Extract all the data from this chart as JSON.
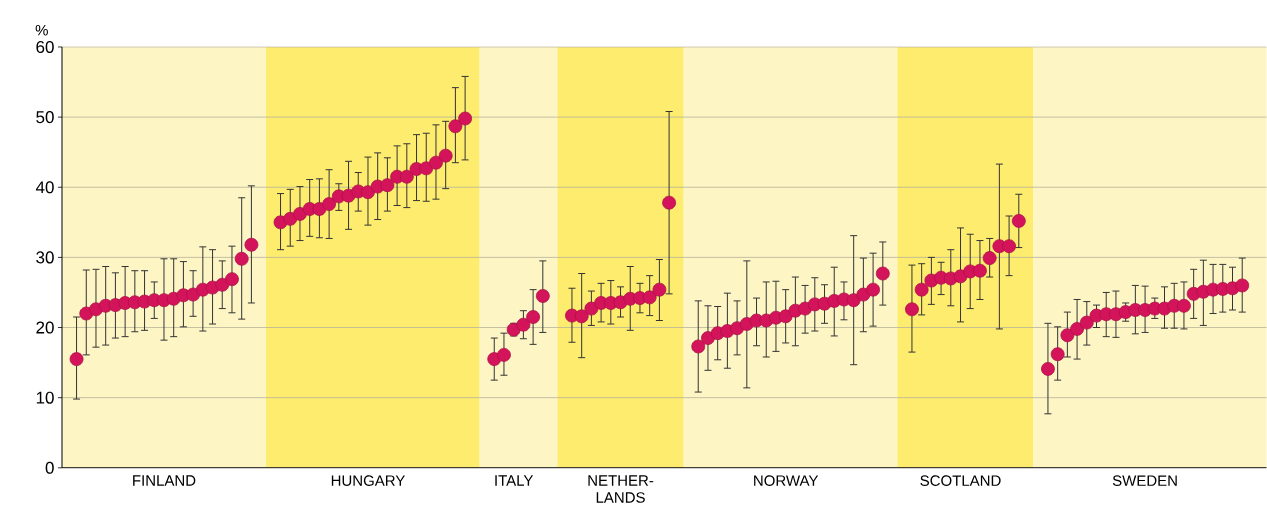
{
  "chart_data": {
    "type": "scatter",
    "ylabel": "%",
    "categories": [
      null,
      null,
      null,
      null,
      null,
      null,
      null,
      null,
      null,
      null,
      "FINLAND",
      null,
      null,
      null,
      null,
      null,
      null,
      null,
      null,
      null,
      null,
      null,
      null,
      null,
      null,
      null,
      null,
      null,
      null,
      null,
      null,
      "HUNGARY",
      null,
      null,
      null,
      null,
      null,
      null,
      null,
      null,
      null,
      null,
      null,
      null,
      null,
      null,
      "ITALY",
      null,
      null,
      null,
      null,
      null,
      null,
      null,
      null,
      null,
      null,
      "NETHER-LANDS",
      null,
      null,
      null,
      null,
      null,
      null,
      null,
      null,
      null,
      null,
      null,
      null,
      null,
      null,
      null,
      null,
      "NORWAY",
      null,
      null,
      null,
      null,
      null,
      null,
      null,
      null,
      null,
      null,
      null,
      null,
      null,
      null,
      null,
      null,
      null,
      "SCOTLAND",
      null,
      null,
      null,
      null,
      null,
      null,
      null,
      null,
      null,
      null,
      null,
      null,
      null,
      null,
      null,
      null,
      null,
      null,
      "SWEDEN",
      null,
      null,
      null,
      null,
      null,
      null,
      null,
      null,
      null,
      null,
      null,
      null
    ],
    "color": "#d4145a",
    "values": [
      null,
      15.5,
      22.0,
      22.6,
      23.1,
      23.2,
      23.5,
      23.6,
      23.7,
      23.9,
      23.9,
      24.1,
      24.6,
      24.7,
      25.4,
      25.7,
      26.1,
      26.9,
      29.8,
      31.8,
      null,
      null,
      35.0,
      35.5,
      36.2,
      36.9,
      36.9,
      37.6,
      38.7,
      38.8,
      39.4,
      39.3,
      40.1,
      40.3,
      41.5,
      41.5,
      42.6,
      42.7,
      43.5,
      44.5,
      48.7,
      49.8,
      null,
      null,
      15.5,
      16.1,
      19.7,
      20.4,
      21.5,
      24.5,
      null,
      null,
      21.7,
      21.6,
      22.7,
      23.5,
      23.5,
      23.6,
      24.1,
      24.2,
      24.3,
      25.4,
      37.8,
      null,
      null,
      17.3,
      18.5,
      19.2,
      19.5,
      19.9,
      20.5,
      21.0,
      21.0,
      21.4,
      21.6,
      22.4,
      22.7,
      23.3,
      23.4,
      23.8,
      24.0,
      23.9,
      24.7,
      25.4,
      27.7,
      null,
      null,
      22.6,
      25.4,
      26.7,
      27.1,
      27.0,
      27.3,
      28.0,
      28.1,
      29.9,
      31.6,
      31.6,
      35.2,
      null,
      null,
      14.1,
      16.2,
      18.9,
      19.8,
      20.7,
      21.7,
      21.9,
      21.9,
      22.2,
      22.5,
      22.5,
      22.7,
      22.7,
      23.1,
      23.1,
      24.8,
      25.1,
      25.4,
      25.5,
      25.6,
      26.0,
      null,
      null
    ],
    "errors": [
      null,
      [
        9.8,
        21.5
      ],
      [
        16.1,
        28.2
      ],
      [
        17.2,
        28.3
      ],
      [
        17.5,
        28.7
      ],
      [
        18.5,
        27.8
      ],
      [
        18.7,
        28.7
      ],
      [
        19.4,
        28.1
      ],
      [
        19.6,
        28.1
      ],
      [
        21.3,
        26.5
      ],
      [
        18.2,
        29.8
      ],
      [
        18.7,
        29.8
      ],
      [
        20.1,
        29.4
      ],
      [
        21.6,
        28.1
      ],
      [
        19.5,
        31.5
      ],
      [
        20.5,
        31.1
      ],
      [
        22.7,
        29.5
      ],
      [
        22.1,
        31.6
      ],
      [
        21.2,
        38.5
      ],
      [
        23.5,
        40.2
      ],
      null,
      null,
      [
        31.1,
        39.1
      ],
      [
        31.6,
        39.7
      ],
      [
        32.4,
        40.1
      ],
      [
        33.0,
        41.1
      ],
      [
        32.8,
        41.2
      ],
      [
        32.7,
        42.5
      ],
      [
        36.7,
        40.5
      ],
      [
        34.0,
        43.7
      ],
      [
        36.6,
        42.1
      ],
      [
        34.6,
        44.3
      ],
      [
        35.4,
        44.9
      ],
      [
        36.6,
        44.2
      ],
      [
        37.4,
        45.9
      ],
      [
        37.1,
        46.2
      ],
      [
        38.1,
        47.5
      ],
      [
        38.0,
        47.7
      ],
      [
        38.3,
        48.9
      ],
      [
        39.8,
        49.4
      ],
      [
        43.5,
        54.2
      ],
      [
        43.9,
        55.8
      ],
      null,
      null,
      [
        12.5,
        18.5
      ],
      [
        13.2,
        19.2
      ],
      [
        18.8,
        20.6
      ],
      [
        18.4,
        22.4
      ],
      [
        17.6,
        25.4
      ],
      [
        19.3,
        29.5
      ],
      null,
      null,
      [
        17.9,
        25.6
      ],
      [
        15.7,
        27.7
      ],
      [
        20.3,
        25.2
      ],
      [
        20.8,
        26.3
      ],
      [
        20.5,
        26.7
      ],
      [
        21.5,
        25.8
      ],
      [
        19.6,
        28.7
      ],
      [
        22.1,
        26.3
      ],
      [
        21.7,
        27.4
      ],
      [
        21.0,
        29.7
      ],
      [
        24.8,
        50.8
      ],
      null,
      null,
      [
        10.8,
        23.8
      ],
      [
        13.9,
        23.1
      ],
      [
        15.4,
        23.0
      ],
      [
        14.2,
        24.9
      ],
      [
        16.1,
        23.8
      ],
      [
        11.4,
        29.5
      ],
      [
        17.4,
        24.2
      ],
      [
        15.8,
        26.5
      ],
      [
        16.6,
        26.6
      ],
      [
        17.8,
        25.4
      ],
      [
        17.4,
        27.2
      ],
      [
        19.2,
        26.0
      ],
      [
        19.5,
        27.1
      ],
      [
        20.6,
        26.1
      ],
      [
        18.8,
        28.6
      ],
      [
        21.1,
        26.5
      ],
      [
        14.7,
        33.1
      ],
      [
        19.4,
        29.9
      ],
      [
        20.2,
        30.6
      ],
      [
        23.2,
        32.2
      ],
      null,
      null,
      [
        16.5,
        28.9
      ],
      [
        21.8,
        29.1
      ],
      [
        23.3,
        30.0
      ],
      [
        24.7,
        29.3
      ],
      [
        23.1,
        31.1
      ],
      [
        20.8,
        34.2
      ],
      [
        22.7,
        33.3
      ],
      [
        24.0,
        32.4
      ],
      [
        27.2,
        32.7
      ],
      [
        19.8,
        43.3
      ],
      [
        27.4,
        35.9
      ],
      [
        31.4,
        39.0
      ],
      null,
      null,
      [
        7.7,
        20.6
      ],
      [
        12.5,
        20.1
      ],
      [
        15.8,
        22.2
      ],
      [
        15.5,
        24.0
      ],
      [
        17.5,
        23.7
      ],
      [
        20.0,
        23.2
      ],
      [
        18.7,
        25.0
      ],
      [
        18.6,
        25.2
      ],
      [
        20.9,
        23.5
      ],
      [
        19.1,
        26.0
      ],
      [
        19.3,
        25.9
      ],
      [
        21.3,
        24.2
      ],
      [
        19.9,
        25.8
      ],
      [
        19.9,
        26.3
      ],
      [
        19.8,
        26.5
      ],
      [
        21.3,
        28.3
      ],
      [
        20.3,
        29.6
      ],
      [
        22.0,
        29.0
      ],
      [
        22.2,
        29.0
      ],
      [
        22.5,
        28.6
      ],
      [
        22.2,
        29.9
      ],
      null,
      null
    ],
    "ylim": [
      0,
      60
    ],
    "yticks": [
      0,
      10,
      20,
      30,
      40,
      50,
      60
    ],
    "grid": "y",
    "marker": "circle",
    "tick_labels": true
  }
}
